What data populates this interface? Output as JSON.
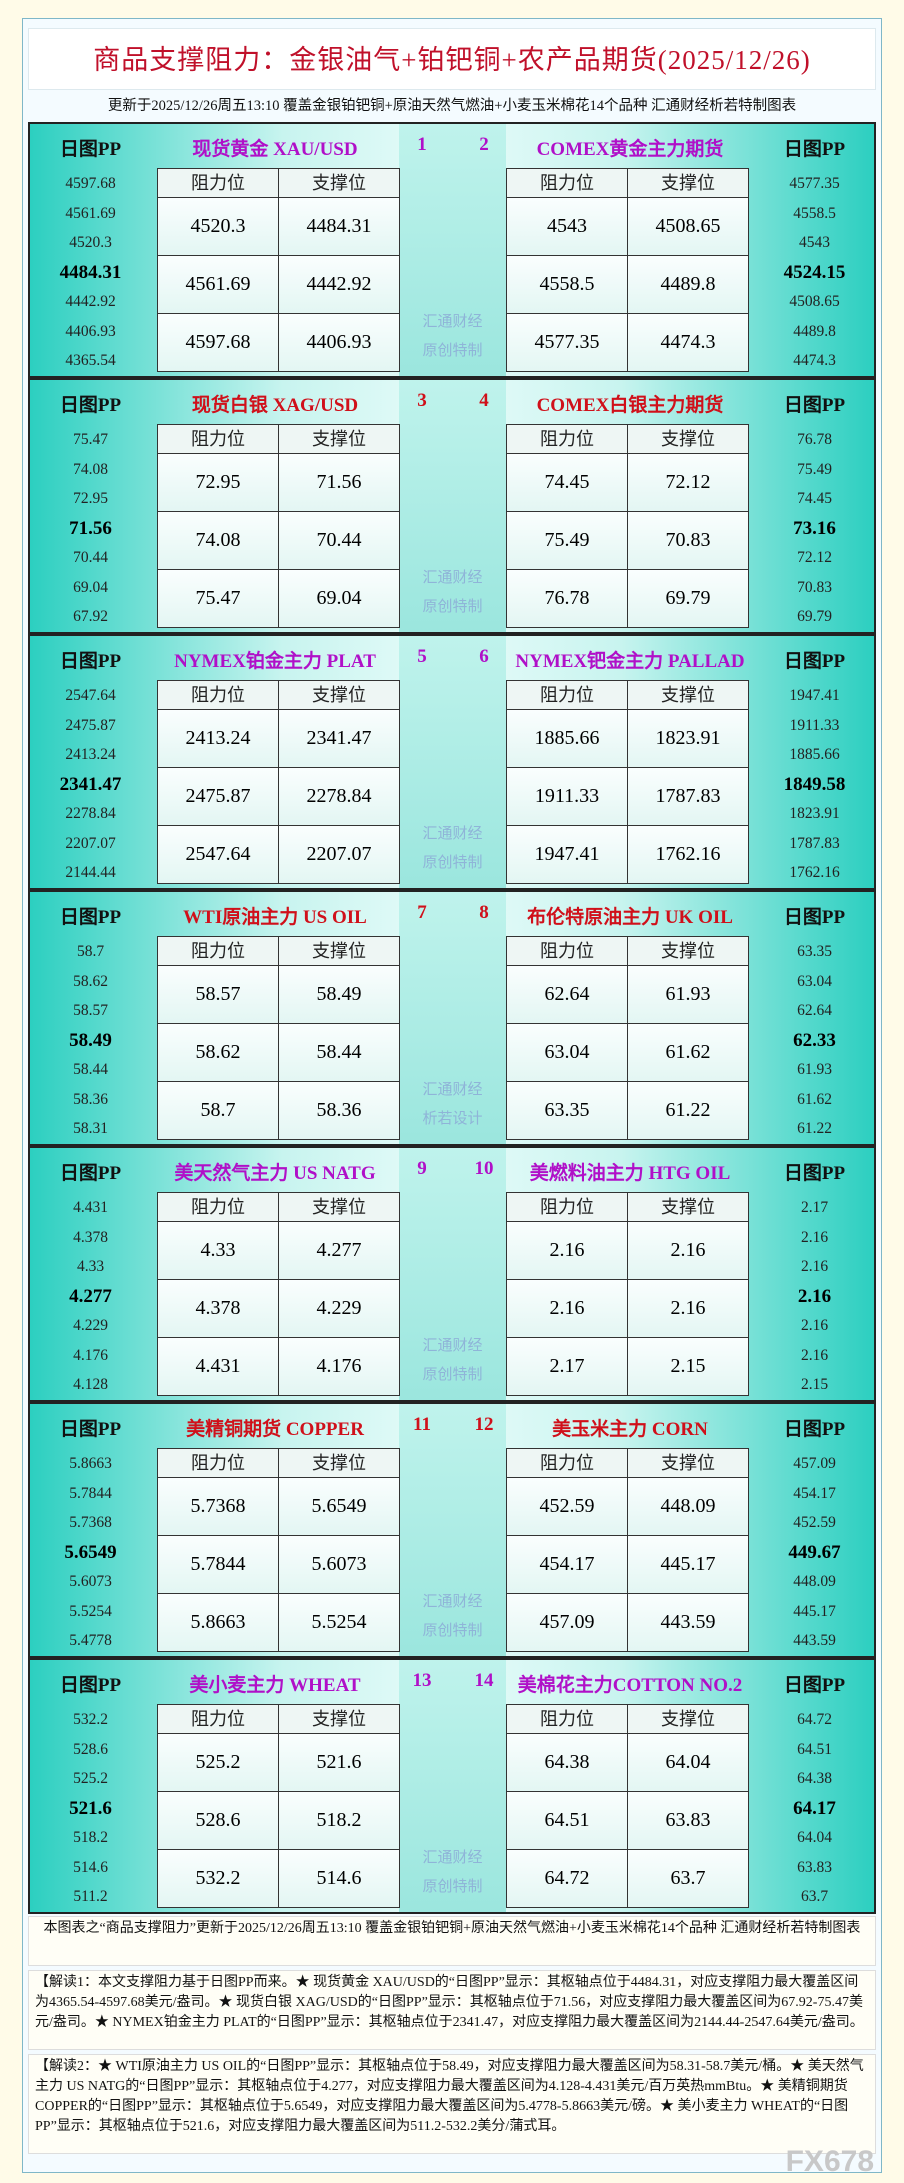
{
  "header": {
    "title": "商品支撑阻力：金银油气+铂钯铜+农产品期货(2025/12/26)",
    "subtitle": "更新于2025/12/26周五13:10 覆盖金银铂钯铜+原油天然气燃油+小麦玉米棉花14个品种 汇通财经析若特制图表"
  },
  "blocks": [
    {
      "left": {
        "pp_label": "日图PP",
        "name": "现货黄金 XAU/USD",
        "number": "1",
        "pivots": [
          "4597.68",
          "4561.69",
          "4520.3",
          "4484.31",
          "4442.92",
          "4406.93",
          "4365.54"
        ],
        "table": {
          "headers": [
            "阻力位",
            "支撑位"
          ],
          "rows": [
            [
              "4520.3",
              "4484.31"
            ],
            [
              "4561.69",
              "4442.92"
            ],
            [
              "4597.68",
              "4406.93"
            ]
          ]
        }
      },
      "right": {
        "pp_label": "日图PP",
        "name": "COMEX黄金主力期货",
        "number": "2",
        "pivots": [
          "4577.35",
          "4558.5",
          "4543",
          "4524.15",
          "4508.65",
          "4489.8",
          "4474.3"
        ],
        "table": {
          "headers": [
            "阻力位",
            "支撑位"
          ],
          "rows": [
            [
              "4543",
              "4508.65"
            ],
            [
              "4558.5",
              "4489.8"
            ],
            [
              "4577.35",
              "4474.3"
            ]
          ]
        }
      },
      "watermark": [
        "汇通财经",
        "原创特制"
      ]
    },
    {
      "left": {
        "pp_label": "日图PP",
        "name": "现货白银 XAG/USD",
        "number": "3",
        "pivots": [
          "75.47",
          "74.08",
          "72.95",
          "71.56",
          "70.44",
          "69.04",
          "67.92"
        ],
        "table": {
          "headers": [
            "阻力位",
            "支撑位"
          ],
          "rows": [
            [
              "72.95",
              "71.56"
            ],
            [
              "74.08",
              "70.44"
            ],
            [
              "75.47",
              "69.04"
            ]
          ]
        }
      },
      "right": {
        "pp_label": "日图PP",
        "name": "COMEX白银主力期货",
        "number": "4",
        "pivots": [
          "76.78",
          "75.49",
          "74.45",
          "73.16",
          "72.12",
          "70.83",
          "69.79"
        ],
        "table": {
          "headers": [
            "阻力位",
            "支撑位"
          ],
          "rows": [
            [
              "74.45",
              "72.12"
            ],
            [
              "75.49",
              "70.83"
            ],
            [
              "76.78",
              "69.79"
            ]
          ]
        }
      },
      "watermark": [
        "汇通财经",
        "原创特制"
      ]
    },
    {
      "left": {
        "pp_label": "日图PP",
        "name": "NYMEX铂金主力 PLAT",
        "number": "5",
        "pivots": [
          "2547.64",
          "2475.87",
          "2413.24",
          "2341.47",
          "2278.84",
          "2207.07",
          "2144.44"
        ],
        "table": {
          "headers": [
            "阻力位",
            "支撑位"
          ],
          "rows": [
            [
              "2413.24",
              "2341.47"
            ],
            [
              "2475.87",
              "2278.84"
            ],
            [
              "2547.64",
              "2207.07"
            ]
          ]
        }
      },
      "right": {
        "pp_label": "日图PP",
        "name": "NYMEX钯金主力 PALLAD",
        "number": "6",
        "pivots": [
          "1947.41",
          "1911.33",
          "1885.66",
          "1849.58",
          "1823.91",
          "1787.83",
          "1762.16"
        ],
        "table": {
          "headers": [
            "阻力位",
            "支撑位"
          ],
          "rows": [
            [
              "1885.66",
              "1823.91"
            ],
            [
              "1911.33",
              "1787.83"
            ],
            [
              "1947.41",
              "1762.16"
            ]
          ]
        }
      },
      "watermark": [
        "汇通财经",
        "原创特制"
      ]
    },
    {
      "left": {
        "pp_label": "日图PP",
        "name": "WTI原油主力 US OIL",
        "number": "7",
        "pivots": [
          "58.7",
          "58.62",
          "58.57",
          "58.49",
          "58.44",
          "58.36",
          "58.31"
        ],
        "table": {
          "headers": [
            "阻力位",
            "支撑位"
          ],
          "rows": [
            [
              "58.57",
              "58.49"
            ],
            [
              "58.62",
              "58.44"
            ],
            [
              "58.7",
              "58.36"
            ]
          ]
        }
      },
      "right": {
        "pp_label": "日图PP",
        "name": "布伦特原油主力 UK OIL",
        "number": "8",
        "pivots": [
          "63.35",
          "63.04",
          "62.64",
          "62.33",
          "61.93",
          "61.62",
          "61.22"
        ],
        "table": {
          "headers": [
            "阻力位",
            "支撑位"
          ],
          "rows": [
            [
              "62.64",
              "61.93"
            ],
            [
              "63.04",
              "61.62"
            ],
            [
              "63.35",
              "61.22"
            ]
          ]
        }
      },
      "watermark": [
        "汇通财经",
        "析若设计"
      ]
    },
    {
      "left": {
        "pp_label": "日图PP",
        "name": "美天然气主力 US NATG",
        "number": "9",
        "pivots": [
          "4.431",
          "4.378",
          "4.33",
          "4.277",
          "4.229",
          "4.176",
          "4.128"
        ],
        "table": {
          "headers": [
            "阻力位",
            "支撑位"
          ],
          "rows": [
            [
              "4.33",
              "4.277"
            ],
            [
              "4.378",
              "4.229"
            ],
            [
              "4.431",
              "4.176"
            ]
          ]
        }
      },
      "right": {
        "pp_label": "日图PP",
        "name": "美燃料油主力 HTG OIL",
        "number": "10",
        "pivots": [
          "2.17",
          "2.16",
          "2.16",
          "2.16",
          "2.16",
          "2.16",
          "2.15"
        ],
        "table": {
          "headers": [
            "阻力位",
            "支撑位"
          ],
          "rows": [
            [
              "2.16",
              "2.16"
            ],
            [
              "2.16",
              "2.16"
            ],
            [
              "2.17",
              "2.15"
            ]
          ]
        }
      },
      "watermark": [
        "汇通财经",
        "原创特制"
      ]
    },
    {
      "left": {
        "pp_label": "日图PP",
        "name": "美精铜期货 COPPER",
        "number": "11",
        "pivots": [
          "5.8663",
          "5.7844",
          "5.7368",
          "5.6549",
          "5.6073",
          "5.5254",
          "5.4778"
        ],
        "table": {
          "headers": [
            "阻力位",
            "支撑位"
          ],
          "rows": [
            [
              "5.7368",
              "5.6549"
            ],
            [
              "5.7844",
              "5.6073"
            ],
            [
              "5.8663",
              "5.5254"
            ]
          ]
        }
      },
      "right": {
        "pp_label": "日图PP",
        "name": "美玉米主力 CORN",
        "number": "12",
        "pivots": [
          "457.09",
          "454.17",
          "452.59",
          "449.67",
          "448.09",
          "445.17",
          "443.59"
        ],
        "table": {
          "headers": [
            "阻力位",
            "支撑位"
          ],
          "rows": [
            [
              "452.59",
              "448.09"
            ],
            [
              "454.17",
              "445.17"
            ],
            [
              "457.09",
              "443.59"
            ]
          ]
        }
      },
      "watermark": [
        "汇通财经",
        "原创特制"
      ]
    },
    {
      "left": {
        "pp_label": "日图PP",
        "name": "美小麦主力 WHEAT",
        "number": "13",
        "pivots": [
          "532.2",
          "528.6",
          "525.2",
          "521.6",
          "518.2",
          "514.6",
          "511.2"
        ],
        "table": {
          "headers": [
            "阻力位",
            "支撑位"
          ],
          "rows": [
            [
              "525.2",
              "521.6"
            ],
            [
              "528.6",
              "518.2"
            ],
            [
              "532.2",
              "514.6"
            ]
          ]
        }
      },
      "right": {
        "pp_label": "日图PP",
        "name": "美棉花主力COTTON NO.2",
        "number": "14",
        "pivots": [
          "64.72",
          "64.51",
          "64.38",
          "64.17",
          "64.04",
          "63.83",
          "63.7"
        ],
        "table": {
          "headers": [
            "阻力位",
            "支撑位"
          ],
          "rows": [
            [
              "64.38",
              "64.04"
            ],
            [
              "64.51",
              "63.83"
            ],
            [
              "64.72",
              "63.7"
            ]
          ]
        }
      },
      "watermark": [
        "汇通财经",
        "原创特制"
      ]
    }
  ],
  "footer": {
    "note": "本图表之“商品支撑阻力”更新于2025/12/26周五13:10 覆盖金银铂钯铜+原油天然气燃油+小麦玉米棉花14个品种 汇通财经析若特制图表",
    "interpretation_1": "【解读1：本文支撑阻力基于日图PP而来。★ 现货黄金 XAU/USD的“日图PP”显示：其枢轴点位于4484.31，对应支撑阻力最大覆盖区间为4365.54-4597.68美元/盎司。★ 现货白银 XAG/USD的“日图PP”显示：其枢轴点位于71.56，对应支撑阻力最大覆盖区间为67.92-75.47美元/盎司。★ NYMEX铂金主力 PLAT的“日图PP”显示：其枢轴点位于2341.47，对应支撑阻力最大覆盖区间为2144.44-2547.64美元/盎司。",
    "interpretation_2": "【解读2：★ WTI原油主力 US OIL的“日图PP”显示：其枢轴点位于58.49，对应支撑阻力最大覆盖区间为58.31-58.7美元/桶。★ 美天然气主力 US NATG的“日图PP”显示：其枢轴点位于4.277，对应支撑阻力最大覆盖区间为4.128-4.431美元/百万英热mmBtu。★ 美精铜期货 COPPER的“日图PP”显示：其枢轴点位于5.6549，对应支撑阻力最大覆盖区间为5.4778-5.8663美元/磅。★ 美小麦主力 WHEAT的“日图PP”显示：其枢轴点位于521.6，对应支撑阻力最大覆盖区间为511.2-532.2美分/蒲式耳。"
  },
  "watermark": "FX678"
}
